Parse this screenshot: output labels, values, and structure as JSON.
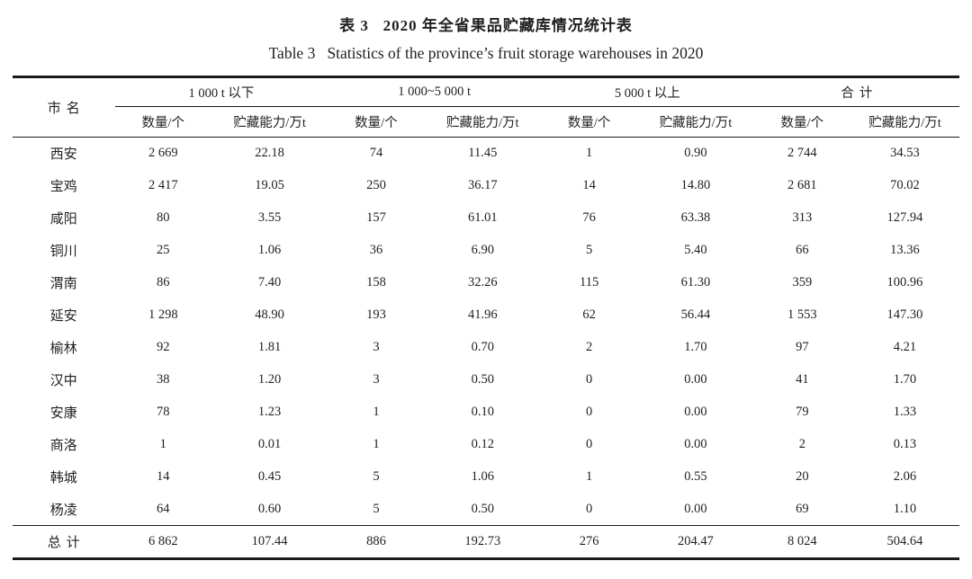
{
  "colors": {
    "rule": "#1a1a1a",
    "text": "#1f1f1f",
    "bg": "#ffffff"
  },
  "title": {
    "zh": "表 3   2020 年全省果品贮藏库情况统计表",
    "en": "Table 3   Statistics of the province’s fruit storage warehouses in 2020"
  },
  "table": {
    "row_header_label": "市名",
    "groups": [
      {
        "label": "1 000 t 以下"
      },
      {
        "label": "1 000~5 000 t"
      },
      {
        "label": "5 000 t 以上"
      },
      {
        "label": "合计"
      }
    ],
    "subheaders": [
      "数量/个",
      "贮藏能力/万t"
    ],
    "rows": [
      {
        "city": "西安",
        "values": [
          "2 669",
          "22.18",
          "74",
          "11.45",
          "1",
          "0.90",
          "2 744",
          "34.53"
        ]
      },
      {
        "city": "宝鸡",
        "values": [
          "2 417",
          "19.05",
          "250",
          "36.17",
          "14",
          "14.80",
          "2 681",
          "70.02"
        ]
      },
      {
        "city": "咸阳",
        "values": [
          "80",
          "3.55",
          "157",
          "61.01",
          "76",
          "63.38",
          "313",
          "127.94"
        ]
      },
      {
        "city": "铜川",
        "values": [
          "25",
          "1.06",
          "36",
          "6.90",
          "5",
          "5.40",
          "66",
          "13.36"
        ]
      },
      {
        "city": "渭南",
        "values": [
          "86",
          "7.40",
          "158",
          "32.26",
          "115",
          "61.30",
          "359",
          "100.96"
        ]
      },
      {
        "city": "延安",
        "values": [
          "1 298",
          "48.90",
          "193",
          "41.96",
          "62",
          "56.44",
          "1 553",
          "147.30"
        ]
      },
      {
        "city": "榆林",
        "values": [
          "92",
          "1.81",
          "3",
          "0.70",
          "2",
          "1.70",
          "97",
          "4.21"
        ]
      },
      {
        "city": "汉中",
        "values": [
          "38",
          "1.20",
          "3",
          "0.50",
          "0",
          "0.00",
          "41",
          "1.70"
        ]
      },
      {
        "city": "安康",
        "values": [
          "78",
          "1.23",
          "1",
          "0.10",
          "0",
          "0.00",
          "79",
          "1.33"
        ]
      },
      {
        "city": "商洛",
        "values": [
          "1",
          "0.01",
          "1",
          "0.12",
          "0",
          "0.00",
          "2",
          "0.13"
        ]
      },
      {
        "city": "韩城",
        "values": [
          "14",
          "0.45",
          "5",
          "1.06",
          "1",
          "0.55",
          "20",
          "2.06"
        ]
      },
      {
        "city": "杨凌",
        "values": [
          "64",
          "0.60",
          "5",
          "0.50",
          "0",
          "0.00",
          "69",
          "1.10"
        ]
      }
    ],
    "total_row": {
      "city": "总计",
      "values": [
        "6 862",
        "107.44",
        "886",
        "192.73",
        "276",
        "204.47",
        "8 024",
        "504.64"
      ]
    }
  }
}
